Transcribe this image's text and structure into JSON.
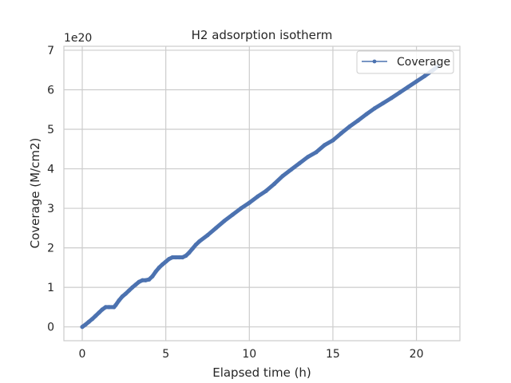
{
  "chart_data": {
    "type": "line",
    "title": "H2 adsorption isotherm",
    "xlabel": "Elapsed time (h)",
    "ylabel": "Coverage (M/cm2)",
    "y_offset_label": "1e20",
    "xlim": [
      -1.1,
      22.6
    ],
    "ylim": [
      -0.35,
      7.1
    ],
    "x_ticks": [
      0,
      5,
      10,
      15,
      20
    ],
    "y_ticks": [
      0,
      1,
      2,
      3,
      4,
      5,
      6,
      7
    ],
    "grid": true,
    "legend_position": "top-right",
    "series": [
      {
        "name": "Coverage",
        "color": "#4c72b0",
        "marker": "circle",
        "x": [
          0.0,
          0.2,
          0.4,
          0.6,
          0.8,
          1.0,
          1.2,
          1.4,
          1.6,
          1.9,
          2.0,
          2.2,
          2.4,
          2.6,
          2.8,
          3.0,
          3.2,
          3.4,
          3.6,
          3.8,
          4.0,
          4.2,
          4.4,
          4.6,
          4.8,
          5.0,
          5.2,
          5.4,
          5.6,
          5.8,
          6.0,
          6.2,
          6.4,
          6.6,
          6.8,
          7.0,
          7.5,
          8.0,
          8.5,
          9.0,
          9.5,
          10.0,
          10.5,
          11.0,
          11.5,
          12.0,
          12.5,
          13.0,
          13.5,
          14.0,
          14.5,
          15.0,
          15.5,
          16.0,
          16.5,
          17.0,
          17.5,
          18.0,
          18.5,
          19.0,
          19.5,
          20.0,
          20.5,
          21.0,
          21.3
        ],
        "values": [
          0.0,
          0.06,
          0.13,
          0.2,
          0.28,
          0.36,
          0.44,
          0.5,
          0.5,
          0.5,
          0.55,
          0.67,
          0.77,
          0.84,
          0.92,
          1.0,
          1.07,
          1.14,
          1.18,
          1.18,
          1.2,
          1.28,
          1.4,
          1.5,
          1.58,
          1.65,
          1.72,
          1.76,
          1.76,
          1.76,
          1.76,
          1.8,
          1.88,
          1.98,
          2.08,
          2.16,
          2.32,
          2.5,
          2.68,
          2.84,
          3.0,
          3.14,
          3.3,
          3.44,
          3.62,
          3.82,
          3.98,
          4.14,
          4.3,
          4.42,
          4.6,
          4.72,
          4.9,
          5.07,
          5.22,
          5.38,
          5.53,
          5.66,
          5.79,
          5.93,
          6.07,
          6.21,
          6.35,
          6.5,
          6.6
        ]
      }
    ]
  }
}
